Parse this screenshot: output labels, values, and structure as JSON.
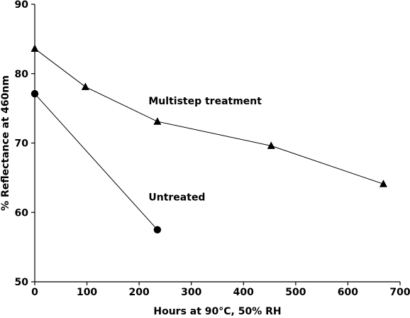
{
  "chart_data": {
    "type": "line",
    "title": "",
    "xlabel": "Hours at 90°C, 50% RH",
    "ylabel": "% Reflectance at 460nm",
    "xlim": [
      0,
      700
    ],
    "ylim": [
      50,
      90
    ],
    "xticks": [
      0,
      100,
      200,
      300,
      400,
      500,
      600,
      700
    ],
    "yticks": [
      50,
      60,
      70,
      80,
      90
    ],
    "grid": false,
    "series": [
      {
        "name": "Multistep treatment",
        "marker": "triangle",
        "x": [
          0,
          97,
          235,
          453,
          668
        ],
        "y": [
          83.6,
          78.1,
          73.1,
          69.6,
          64.1
        ]
      },
      {
        "name": "Untreated",
        "marker": "circle",
        "x": [
          0,
          235
        ],
        "y": [
          77.1,
          57.5
        ]
      }
    ],
    "annotations": [
      {
        "text": "Multistep treatment",
        "x": 218,
        "y": 75.6
      },
      {
        "text": "Untreated",
        "x": 218,
        "y": 61.7
      }
    ]
  }
}
